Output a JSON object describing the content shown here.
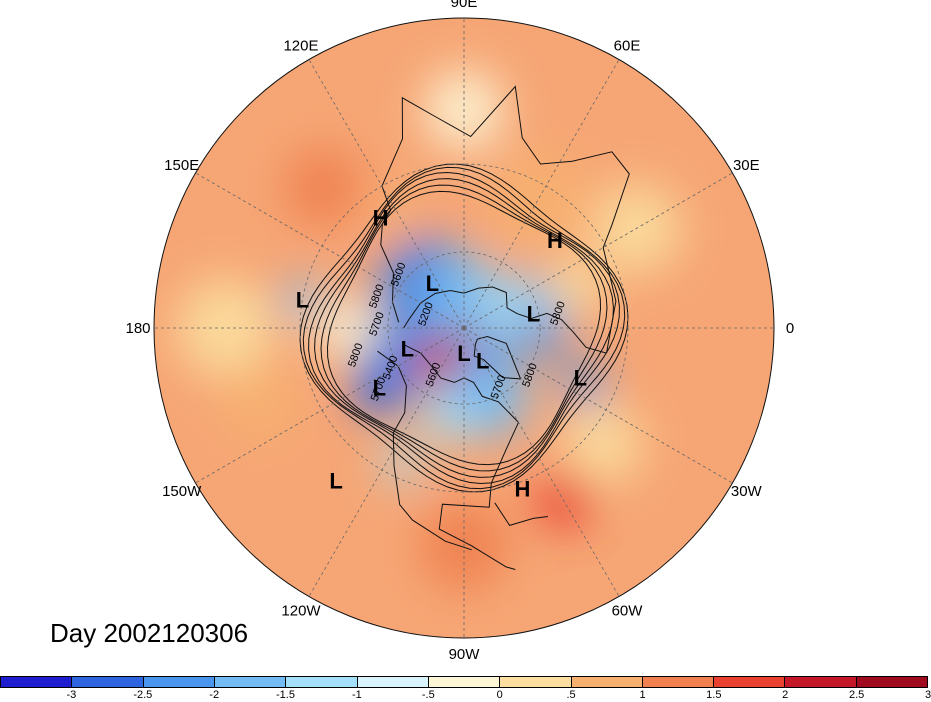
{
  "map": {
    "projection": "north polar stereographic",
    "longitude_labels": [
      {
        "text": "90E",
        "angle_deg": 90
      },
      {
        "text": "60E",
        "angle_deg": 60
      },
      {
        "text": "30E",
        "angle_deg": 30
      },
      {
        "text": "0",
        "angle_deg": 0
      },
      {
        "text": "30W",
        "angle_deg": -30
      },
      {
        "text": "60W",
        "angle_deg": -60
      },
      {
        "text": "90W",
        "angle_deg": -90
      },
      {
        "text": "120W",
        "angle_deg": -120
      },
      {
        "text": "150W",
        "angle_deg": -150
      },
      {
        "text": "180",
        "angle_deg": 180
      },
      {
        "text": "150E",
        "angle_deg": 150
      },
      {
        "text": "120E",
        "angle_deg": 120
      }
    ],
    "pressure_markers": [
      {
        "type": "H",
        "lon": 127,
        "lat": 38
      },
      {
        "type": "H",
        "lon": 44,
        "lat": 42
      },
      {
        "type": "L",
        "lon": 170,
        "lat": 30
      },
      {
        "type": "L",
        "lon": 125,
        "lat": 68
      },
      {
        "type": "L",
        "lon": 12,
        "lat": 62
      },
      {
        "type": "L",
        "lon": -160,
        "lat": 66
      },
      {
        "type": "L",
        "lon": -90,
        "lat": 80
      },
      {
        "type": "L",
        "lon": -60,
        "lat": 75
      },
      {
        "type": "L",
        "lon": -23,
        "lat": 42
      },
      {
        "type": "L",
        "lon": -145,
        "lat": 50
      },
      {
        "type": "L",
        "lon": -130,
        "lat": 20
      },
      {
        "type": "H",
        "lon": -70,
        "lat": 28
      }
    ],
    "contour_labels": [
      {
        "text": "5800",
        "lon": 160,
        "lat": 55
      },
      {
        "text": "5600",
        "lon": 140,
        "lat": 58
      },
      {
        "text": "5200",
        "lon": 160,
        "lat": 75
      },
      {
        "text": "5700",
        "lon": 178,
        "lat": 57
      },
      {
        "text": "5800",
        "lon": -165,
        "lat": 48
      },
      {
        "text": "5400",
        "lon": -150,
        "lat": 58
      },
      {
        "text": "5700",
        "lon": -143,
        "lat": 50
      },
      {
        "text": "5600",
        "lon": -120,
        "lat": 68
      },
      {
        "text": "5700",
        "lon": -58,
        "lat": 62
      },
      {
        "text": "5800",
        "lon": -35,
        "lat": 57
      },
      {
        "text": "5800",
        "lon": 8,
        "lat": 52
      }
    ]
  },
  "title": {
    "day_label": "Day 2002120306"
  },
  "colorbar": {
    "colors": [
      "#1e1ed0",
      "#2f64e0",
      "#4a96ee",
      "#74bcf5",
      "#a4e0fa",
      "#daf4fd",
      "#fdf6d6",
      "#fbdea0",
      "#f7b070",
      "#f08050",
      "#e94030",
      "#c41828",
      "#a00a1e"
    ],
    "tick_labels": [
      "-3",
      "-2.5",
      "-2",
      "-1.5",
      "-1",
      "-.5",
      "0",
      ".5",
      "1",
      "1.5",
      "2",
      "2.5",
      "3"
    ]
  }
}
